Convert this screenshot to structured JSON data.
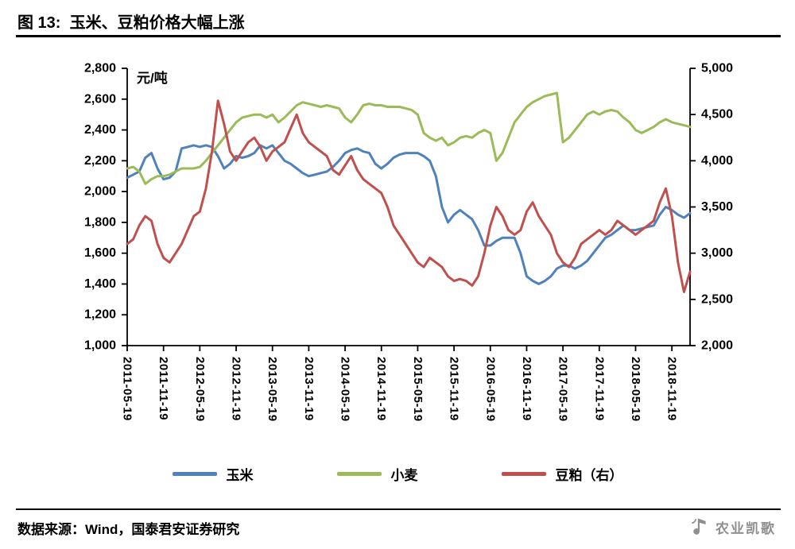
{
  "header": {
    "figure_label": "图 13",
    "title": "图 13:  玉米、豆粕价格大幅上涨"
  },
  "footer": {
    "source": "数据来源：Wind，国泰君安证券研究",
    "brand": "农业凯歌"
  },
  "legend": [
    {
      "label": "玉米",
      "color": "#4F81BD"
    },
    {
      "label": "小麦",
      "color": "#9BBB59"
    },
    {
      "label": "豆粕（右）",
      "color": "#C0504D"
    }
  ],
  "chart_data": {
    "type": "line",
    "title": "玉米、豆粕价格大幅上涨",
    "unit_label": "元/吨",
    "grid": false,
    "legend_position": "bottom",
    "left_axis": {
      "min": 1000,
      "max": 2800,
      "step": 200
    },
    "right_axis": {
      "min": 2000,
      "max": 5000,
      "step": 500
    },
    "x_tick_labels": [
      "2011-05-19",
      "2011-11-19",
      "2012-05-19",
      "2012-11-19",
      "2013-05-19",
      "2013-11-19",
      "2014-05-19",
      "2014-11-19",
      "2015-05-19",
      "2015-11-19",
      "2016-05-19",
      "2016-11-19",
      "2017-05-19",
      "2017-11-19",
      "2018-05-19",
      "2018-11-19"
    ],
    "x_tick_interval": 6,
    "x_months": [
      "2011-05",
      "2011-06",
      "2011-07",
      "2011-08",
      "2011-09",
      "2011-10",
      "2011-11",
      "2011-12",
      "2012-01",
      "2012-02",
      "2012-03",
      "2012-04",
      "2012-05",
      "2012-06",
      "2012-07",
      "2012-08",
      "2012-09",
      "2012-10",
      "2012-11",
      "2012-12",
      "2013-01",
      "2013-02",
      "2013-03",
      "2013-04",
      "2013-05",
      "2013-06",
      "2013-07",
      "2013-08",
      "2013-09",
      "2013-10",
      "2013-11",
      "2013-12",
      "2014-01",
      "2014-02",
      "2014-03",
      "2014-04",
      "2014-05",
      "2014-06",
      "2014-07",
      "2014-08",
      "2014-09",
      "2014-10",
      "2014-11",
      "2014-12",
      "2015-01",
      "2015-02",
      "2015-03",
      "2015-04",
      "2015-05",
      "2015-06",
      "2015-07",
      "2015-08",
      "2015-09",
      "2015-10",
      "2015-11",
      "2015-12",
      "2016-01",
      "2016-02",
      "2016-03",
      "2016-04",
      "2016-05",
      "2016-06",
      "2016-07",
      "2016-08",
      "2016-09",
      "2016-10",
      "2016-11",
      "2016-12",
      "2017-01",
      "2017-02",
      "2017-03",
      "2017-04",
      "2017-05",
      "2017-06",
      "2017-07",
      "2017-08",
      "2017-09",
      "2017-10",
      "2017-11",
      "2017-12",
      "2018-01",
      "2018-02",
      "2018-03",
      "2018-04",
      "2018-05",
      "2018-06",
      "2018-07",
      "2018-08",
      "2018-09",
      "2018-10",
      "2018-11",
      "2018-12",
      "2019-01",
      "2019-02"
    ],
    "series": [
      {
        "name": "玉米",
        "axis": "left",
        "color": "#4F81BD",
        "values": [
          2090,
          2110,
          2130,
          2220,
          2250,
          2150,
          2080,
          2090,
          2130,
          2280,
          2290,
          2300,
          2290,
          2300,
          2290,
          2230,
          2150,
          2180,
          2230,
          2220,
          2230,
          2250,
          2300,
          2280,
          2300,
          2250,
          2200,
          2180,
          2150,
          2120,
          2100,
          2110,
          2120,
          2130,
          2160,
          2200,
          2250,
          2270,
          2280,
          2260,
          2250,
          2180,
          2150,
          2180,
          2220,
          2240,
          2250,
          2250,
          2250,
          2230,
          2200,
          2100,
          1900,
          1800,
          1850,
          1880,
          1850,
          1820,
          1750,
          1650,
          1650,
          1680,
          1700,
          1700,
          1700,
          1600,
          1450,
          1420,
          1400,
          1420,
          1450,
          1500,
          1520,
          1520,
          1500,
          1520,
          1550,
          1600,
          1650,
          1700,
          1720,
          1750,
          1780,
          1750,
          1750,
          1760,
          1770,
          1780,
          1850,
          1900,
          1880,
          1850,
          1830,
          1860
        ]
      },
      {
        "name": "小麦",
        "axis": "left",
        "color": "#9BBB59",
        "values": [
          2150,
          2160,
          2130,
          2050,
          2080,
          2100,
          2100,
          2110,
          2130,
          2150,
          2150,
          2150,
          2160,
          2200,
          2250,
          2300,
          2350,
          2400,
          2450,
          2480,
          2490,
          2500,
          2500,
          2480,
          2500,
          2450,
          2480,
          2520,
          2560,
          2580,
          2570,
          2560,
          2550,
          2560,
          2550,
          2540,
          2480,
          2450,
          2500,
          2560,
          2570,
          2560,
          2560,
          2550,
          2550,
          2550,
          2540,
          2530,
          2500,
          2380,
          2350,
          2330,
          2350,
          2300,
          2320,
          2350,
          2360,
          2350,
          2380,
          2400,
          2380,
          2200,
          2250,
          2350,
          2450,
          2500,
          2550,
          2580,
          2600,
          2620,
          2630,
          2640,
          2320,
          2350,
          2400,
          2450,
          2500,
          2520,
          2500,
          2520,
          2530,
          2520,
          2480,
          2450,
          2400,
          2380,
          2400,
          2420,
          2450,
          2470,
          2450,
          2440,
          2430,
          2420
        ]
      },
      {
        "name": "豆粕（右）",
        "axis": "right",
        "color": "#C0504D",
        "values": [
          3100,
          3150,
          3300,
          3400,
          3350,
          3100,
          2950,
          2900,
          3000,
          3100,
          3250,
          3400,
          3450,
          3700,
          4100,
          4650,
          4400,
          4100,
          4000,
          4100,
          4200,
          4250,
          4150,
          4000,
          4100,
          4150,
          4200,
          4350,
          4500,
          4300,
          4200,
          4150,
          4100,
          4050,
          3900,
          3850,
          3950,
          4050,
          3900,
          3800,
          3750,
          3700,
          3650,
          3500,
          3300,
          3200,
          3100,
          3000,
          2900,
          2850,
          2950,
          2900,
          2850,
          2750,
          2700,
          2720,
          2700,
          2650,
          2750,
          3000,
          3300,
          3500,
          3400,
          3250,
          3200,
          3250,
          3450,
          3550,
          3400,
          3300,
          3200,
          3000,
          2900,
          2850,
          2950,
          3100,
          3150,
          3200,
          3250,
          3200,
          3250,
          3350,
          3300,
          3250,
          3200,
          3250,
          3300,
          3350,
          3550,
          3700,
          3400,
          2900,
          2580,
          2800
        ]
      }
    ]
  }
}
